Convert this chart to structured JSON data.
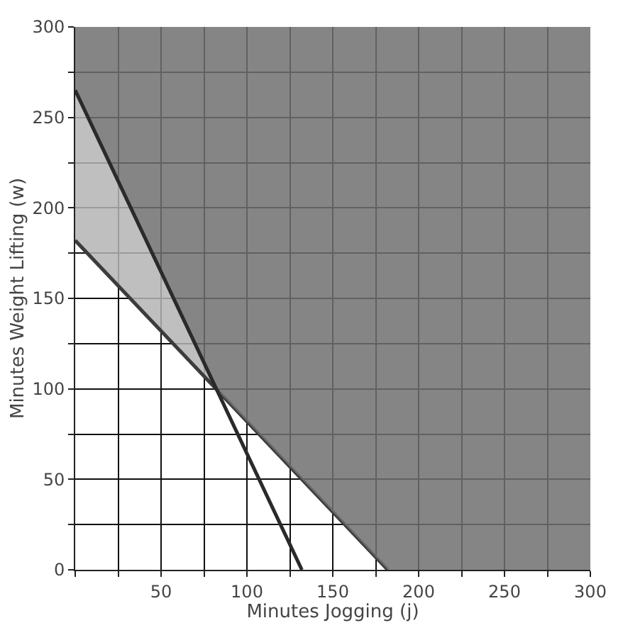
{
  "chart_data": {
    "type": "area",
    "xlabel": "Minutes Jogging (j)",
    "ylabel": "Minutes Weight Lifting (w)",
    "x": [
      0,
      82.4,
      132,
      182,
      300
    ],
    "series": [
      {
        "type": "line",
        "color": "#3c3c3c",
        "x": [
          0,
          182
        ],
        "values": [
          182,
          0
        ]
      },
      {
        "color": "#b4b4b4",
        "values": [
          265,
          99.6,
          50,
          0,
          0
        ]
      },
      {
        "color": "#707070",
        "values": [
          300,
          300,
          300,
          300,
          300
        ]
      },
      {
        "type": "line",
        "color": "#2a2a2a",
        "x": [
          0,
          132
        ],
        "values": [
          265,
          0
        ]
      }
    ],
    "xlim": [
      0,
      300
    ],
    "ylim": [
      0,
      300
    ],
    "xticks": [
      {
        "value": 0,
        "label": null
      },
      {
        "value": 25,
        "label": null
      },
      50,
      {
        "value": 75,
        "label": null
      },
      100,
      {
        "value": 125,
        "label": null
      },
      150,
      {
        "value": 175,
        "label": null
      },
      200,
      {
        "value": 225,
        "label": null
      },
      250,
      {
        "value": 275,
        "label": null
      },
      300
    ],
    "yticks": [
      0,
      {
        "value": 25,
        "label": null
      },
      50,
      {
        "value": 75,
        "label": null
      },
      100,
      {
        "value": 125,
        "label": null
      },
      150,
      {
        "value": 175,
        "label": null
      },
      200,
      {
        "value": 225,
        "label": null
      },
      250,
      {
        "value": 275,
        "label": null
      },
      300
    ],
    "grid": true,
    "marker": "none"
  }
}
